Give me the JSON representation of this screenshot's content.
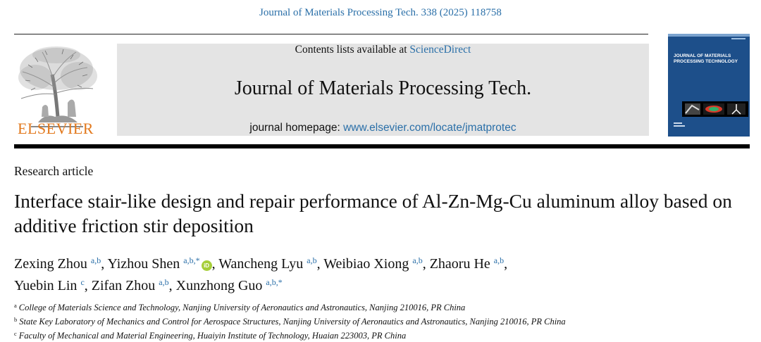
{
  "header": {
    "journal_ref": "Journal of Materials Processing Tech. 338 (2025) 118758",
    "publisher": "ELSEVIER",
    "contents_prefix": "Contents lists available at ",
    "contents_link": "ScienceDirect",
    "journal_title": "Journal of Materials Processing Tech.",
    "homepage_prefix": "journal homepage: ",
    "homepage_url": "www.elsevier.com/locate/jmatprotec",
    "cover_title": "JOURNAL OF MATERIALS PROCESSING TECHNOLOGY"
  },
  "article": {
    "type": "Research article",
    "title": "Interface stair-like design and repair performance of Al-Zn-Mg-Cu aluminum alloy based on additive friction stir deposition"
  },
  "authors": [
    {
      "name": "Zexing Zhou",
      "sup": "a,b",
      "sep": ", "
    },
    {
      "name": "Yizhou Shen",
      "sup": "a,b,*",
      "orcid": "iD",
      "sep": ", "
    },
    {
      "name": "Wancheng Lyu",
      "sup": "a,b",
      "sep": ", "
    },
    {
      "name": "Weibiao Xiong",
      "sup": "a,b",
      "sep": ", "
    },
    {
      "name": "Zhaoru He",
      "sup": "a,b",
      "sep": ","
    },
    {
      "name": "Yuebin Lin",
      "sup": "c",
      "sep": ", "
    },
    {
      "name": "Zifan Zhou",
      "sup": "a,b",
      "sep": ", "
    },
    {
      "name": "Xunzhong Guo",
      "sup": "a,b,*",
      "sep": ""
    }
  ],
  "affiliations": [
    {
      "mark": "a",
      "text": "College of Materials Science and Technology, Nanjing University of Aeronautics and Astronautics, Nanjing 210016, PR China"
    },
    {
      "mark": "b",
      "text": "State Key Laboratory of Mechanics and Control for Aerospace Structures, Nanjing University of Aeronautics and Astronautics, Nanjing 210016, PR China"
    },
    {
      "mark": "c",
      "text": "Faculty of Mechanical and Material Engineering, Huaiyin Institute of Technology, Huaian 223003, PR China"
    }
  ],
  "colors": {
    "link": "#2a6fa8",
    "publisher": "#e2781c",
    "cover": "#1d4f8a",
    "banner": "#e4e4e4"
  }
}
